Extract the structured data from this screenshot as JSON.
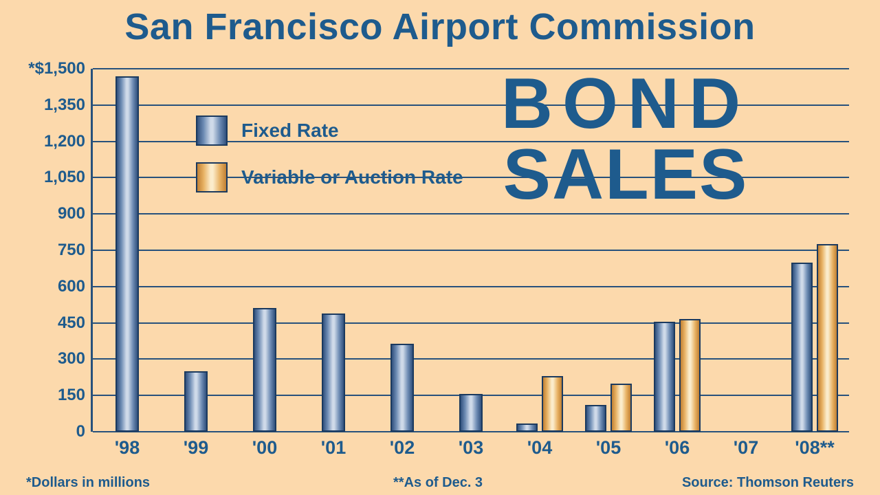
{
  "title": "San Francisco Airport Commission",
  "headline": {
    "line1": "BOND",
    "line2": "SALES"
  },
  "legend": {
    "fixed": "Fixed Rate",
    "variable": "Variable or Auction Rate"
  },
  "footnotes": {
    "left": "*Dollars in millions",
    "center": "**As of Dec. 3",
    "right": "Source: Thomson Reuters"
  },
  "colors": {
    "background": "#fcd9ac",
    "navy": "#1e5b8d",
    "gridline": "#27517c",
    "bar_outline": "#1b3a5f",
    "fixed_bar": [
      "#31517d",
      "#6e8cb4",
      "#cfdae9"
    ],
    "variable_bar": [
      "#c08034",
      "#e8b264",
      "#fbeccb"
    ]
  },
  "chart_data": {
    "type": "bar",
    "title": "San Francisco Airport Commission — Bond Sales",
    "categories": [
      "'98",
      "'99",
      "'00",
      "'01",
      "'02",
      "'03",
      "'04",
      "'05",
      "'06",
      "'07",
      "'08**"
    ],
    "series": [
      {
        "name": "Fixed Rate",
        "values": [
          1470,
          250,
          510,
          490,
          365,
          155,
          35,
          110,
          455,
          0,
          700
        ]
      },
      {
        "name": "Variable or Auction Rate",
        "values": [
          0,
          0,
          0,
          0,
          0,
          0,
          230,
          200,
          465,
          0,
          775
        ]
      }
    ],
    "xlabel": "",
    "ylabel": "*Dollars in millions",
    "ylim": [
      0,
      1500
    ],
    "ytick_interval": 150,
    "ytick_labels": [
      "0",
      "150",
      "300",
      "450",
      "600",
      "750",
      "900",
      "1,050",
      "1,200",
      "1,350",
      "*$1,500"
    ],
    "grid": true,
    "legend_position": "upper-left-inside"
  }
}
